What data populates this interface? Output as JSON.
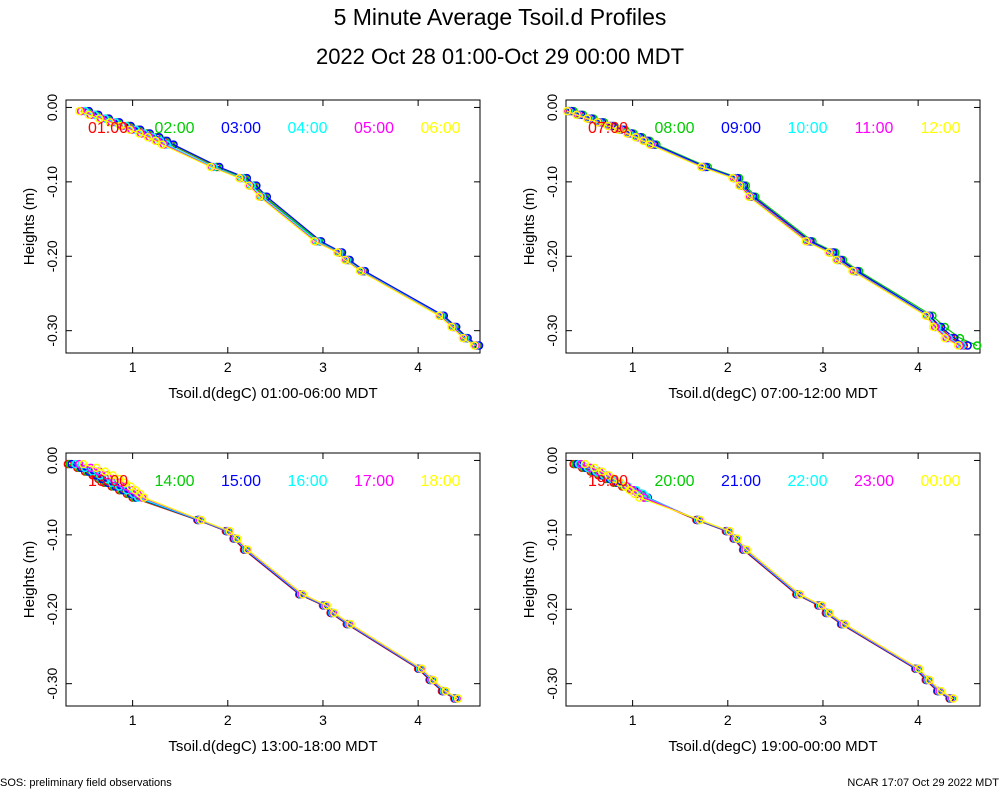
{
  "title": "5 Minute Average Tsoil.d Profiles",
  "subtitle": "2022 Oct 28 01:00-Oct 29 00:00 MDT",
  "footer_left": "SOS: preliminary field observations",
  "footer_right": "NCAR 17:07 Oct 29 2022 MDT",
  "series_colors": [
    "#ff0000",
    "#00cc00",
    "#0000ff",
    "#00ffff",
    "#ff00ff",
    "#ffff00"
  ],
  "chart_data": [
    {
      "type": "line",
      "xlabel": "Tsoil.d(degC) 01:00-06:00 MDT",
      "ylabel": "Heights (m)",
      "xlim": [
        0.3,
        4.65
      ],
      "ylim": [
        -0.33,
        0.01
      ],
      "x_ticks": [
        1,
        2,
        3,
        4
      ],
      "y_ticks": [
        0.0,
        -0.1,
        -0.2,
        -0.3
      ],
      "y_tick_labels": [
        "0.00",
        "-0.10",
        "-0.20",
        "-0.30"
      ],
      "heights": [
        -0.005,
        -0.01,
        -0.015,
        -0.02,
        -0.025,
        -0.03,
        -0.035,
        -0.04,
        -0.045,
        -0.05,
        -0.08,
        -0.095,
        -0.105,
        -0.12,
        -0.18,
        -0.195,
        -0.205,
        -0.22,
        -0.28,
        -0.295,
        -0.31,
        -0.32
      ],
      "series": [
        {
          "name": "01:00",
          "values": [
            0.5,
            0.6,
            0.72,
            0.83,
            0.95,
            1.05,
            1.15,
            1.25,
            1.33,
            1.4,
            1.88,
            2.17,
            2.27,
            2.38,
            2.95,
            3.18,
            3.26,
            3.42,
            4.25,
            4.38,
            4.5,
            4.62
          ]
        },
        {
          "name": "02:00",
          "values": [
            0.52,
            0.62,
            0.73,
            0.84,
            0.96,
            1.06,
            1.16,
            1.26,
            1.34,
            1.41,
            1.89,
            2.18,
            2.28,
            2.39,
            2.96,
            3.19,
            3.27,
            3.43,
            4.26,
            4.39,
            4.51,
            4.63
          ]
        },
        {
          "name": "03:00",
          "values": [
            0.54,
            0.64,
            0.75,
            0.86,
            0.98,
            1.08,
            1.18,
            1.28,
            1.36,
            1.43,
            1.91,
            2.2,
            2.3,
            2.41,
            2.98,
            3.2,
            3.28,
            3.44,
            4.27,
            4.4,
            4.52,
            4.64
          ]
        },
        {
          "name": "04:00",
          "values": [
            0.5,
            0.6,
            0.71,
            0.82,
            0.93,
            1.03,
            1.12,
            1.21,
            1.29,
            1.36,
            1.85,
            2.15,
            2.25,
            2.36,
            2.94,
            3.17,
            3.25,
            3.41,
            4.24,
            4.37,
            4.49,
            4.61
          ]
        },
        {
          "name": "05:00",
          "values": [
            0.46,
            0.56,
            0.67,
            0.78,
            0.89,
            0.99,
            1.09,
            1.18,
            1.26,
            1.33,
            1.83,
            2.13,
            2.23,
            2.34,
            2.92,
            3.16,
            3.24,
            3.4,
            4.23,
            4.36,
            4.48,
            4.6
          ]
        },
        {
          "name": "06:00",
          "values": [
            0.44,
            0.54,
            0.65,
            0.76,
            0.87,
            0.97,
            1.07,
            1.16,
            1.24,
            1.31,
            1.82,
            2.12,
            2.22,
            2.33,
            2.91,
            3.15,
            3.23,
            3.39,
            4.22,
            4.35,
            4.47,
            4.59
          ]
        }
      ]
    },
    {
      "type": "line",
      "xlabel": "Tsoil.d(degC) 07:00-12:00 MDT",
      "ylabel": "Heights (m)",
      "xlim": [
        0.3,
        4.65
      ],
      "ylim": [
        -0.33,
        0.01
      ],
      "x_ticks": [
        1,
        2,
        3,
        4
      ],
      "y_ticks": [
        0.0,
        -0.1,
        -0.2,
        -0.3
      ],
      "y_tick_labels": [
        "0.00",
        "-0.10",
        "-0.20",
        "-0.30"
      ],
      "heights": [
        -0.005,
        -0.01,
        -0.015,
        -0.02,
        -0.025,
        -0.03,
        -0.035,
        -0.04,
        -0.045,
        -0.05,
        -0.08,
        -0.095,
        -0.105,
        -0.12,
        -0.18,
        -0.195,
        -0.205,
        -0.22,
        -0.28,
        -0.295,
        -0.31,
        -0.32
      ],
      "series": [
        {
          "name": "07:00",
          "values": [
            0.34,
            0.44,
            0.55,
            0.66,
            0.77,
            0.88,
            0.97,
            1.06,
            1.14,
            1.21,
            1.75,
            2.08,
            2.15,
            2.25,
            2.85,
            3.1,
            3.18,
            3.35,
            4.12,
            4.22,
            4.35,
            4.48
          ]
        },
        {
          "name": "08:00",
          "values": [
            0.38,
            0.48,
            0.59,
            0.7,
            0.81,
            0.92,
            1.01,
            1.1,
            1.18,
            1.25,
            1.79,
            2.12,
            2.19,
            2.29,
            2.89,
            3.13,
            3.21,
            3.38,
            4.15,
            4.28,
            4.44,
            4.62
          ]
        },
        {
          "name": "09:00",
          "values": [
            0.36,
            0.46,
            0.57,
            0.68,
            0.79,
            0.9,
            0.99,
            1.08,
            1.16,
            1.23,
            1.77,
            2.1,
            2.17,
            2.27,
            2.87,
            3.11,
            3.19,
            3.36,
            4.12,
            4.24,
            4.38,
            4.52
          ]
        },
        {
          "name": "10:00",
          "values": [
            0.33,
            0.43,
            0.54,
            0.65,
            0.76,
            0.87,
            0.96,
            1.05,
            1.13,
            1.2,
            1.74,
            2.07,
            2.14,
            2.24,
            2.84,
            3.08,
            3.16,
            3.33,
            4.1,
            4.2,
            4.32,
            4.46
          ]
        },
        {
          "name": "11:00",
          "values": [
            0.32,
            0.42,
            0.53,
            0.64,
            0.75,
            0.86,
            0.95,
            1.04,
            1.12,
            1.19,
            1.73,
            2.06,
            2.13,
            2.23,
            2.83,
            3.07,
            3.15,
            3.32,
            4.09,
            4.18,
            4.3,
            4.44
          ]
        },
        {
          "name": "12:00",
          "values": [
            0.31,
            0.41,
            0.52,
            0.63,
            0.74,
            0.85,
            0.94,
            1.03,
            1.11,
            1.18,
            1.72,
            2.05,
            2.12,
            2.22,
            2.82,
            3.06,
            3.14,
            3.31,
            4.08,
            4.16,
            4.28,
            4.42
          ]
        }
      ]
    },
    {
      "type": "line",
      "xlabel": "Tsoil.d(degC) 13:00-18:00 MDT",
      "ylabel": "Heights (m)",
      "xlim": [
        0.3,
        4.65
      ],
      "ylim": [
        -0.33,
        0.01
      ],
      "x_ticks": [
        1,
        2,
        3,
        4
      ],
      "y_ticks": [
        0.0,
        -0.1,
        -0.2,
        -0.3
      ],
      "y_tick_labels": [
        "0.00",
        "-0.10",
        "-0.20",
        "-0.30"
      ],
      "heights": [
        -0.005,
        -0.01,
        -0.015,
        -0.02,
        -0.025,
        -0.03,
        -0.035,
        -0.04,
        -0.045,
        -0.05,
        -0.08,
        -0.095,
        -0.105,
        -0.12,
        -0.18,
        -0.195,
        -0.205,
        -0.22,
        -0.28,
        -0.295,
        -0.31,
        -0.32
      ],
      "series": [
        {
          "name": "13:00",
          "values": [
            0.32,
            0.42,
            0.5,
            0.58,
            0.64,
            0.7,
            0.78,
            0.86,
            0.94,
            1.0,
            1.68,
            1.98,
            2.06,
            2.17,
            2.75,
            3.0,
            3.08,
            3.25,
            4.0,
            4.12,
            4.25,
            4.38
          ]
        },
        {
          "name": "14:00",
          "values": [
            0.34,
            0.44,
            0.52,
            0.6,
            0.66,
            0.72,
            0.8,
            0.88,
            0.96,
            1.02,
            1.69,
            1.99,
            2.07,
            2.18,
            2.76,
            3.01,
            3.09,
            3.26,
            4.01,
            4.13,
            4.26,
            4.39
          ]
        },
        {
          "name": "15:00",
          "values": [
            0.36,
            0.46,
            0.54,
            0.62,
            0.68,
            0.74,
            0.82,
            0.9,
            0.98,
            1.04,
            1.69,
            1.99,
            2.07,
            2.18,
            2.76,
            3.01,
            3.09,
            3.26,
            4.01,
            4.13,
            4.26,
            4.39
          ]
        },
        {
          "name": "16:00",
          "values": [
            0.4,
            0.5,
            0.58,
            0.66,
            0.72,
            0.78,
            0.86,
            0.94,
            1.01,
            1.06,
            1.7,
            2.0,
            2.08,
            2.19,
            2.77,
            3.02,
            3.1,
            3.27,
            4.02,
            4.14,
            4.27,
            4.4
          ]
        },
        {
          "name": "17:00",
          "values": [
            0.44,
            0.56,
            0.65,
            0.73,
            0.8,
            0.86,
            0.93,
            0.99,
            1.05,
            1.1,
            1.71,
            2.01,
            2.09,
            2.2,
            2.78,
            3.03,
            3.11,
            3.28,
            4.03,
            4.15,
            4.28,
            4.41
          ]
        },
        {
          "name": "18:00",
          "values": [
            0.48,
            0.62,
            0.71,
            0.79,
            0.86,
            0.92,
            0.98,
            1.03,
            1.08,
            1.12,
            1.72,
            2.02,
            2.1,
            2.21,
            2.79,
            3.04,
            3.12,
            3.29,
            4.04,
            4.16,
            4.29,
            4.42
          ]
        }
      ]
    },
    {
      "type": "line",
      "xlabel": "Tsoil.d(degC) 19:00-00:00 MDT",
      "ylabel": "Heights (m)",
      "xlim": [
        0.3,
        4.65
      ],
      "ylim": [
        -0.33,
        0.01
      ],
      "x_ticks": [
        1,
        2,
        3,
        4
      ],
      "y_ticks": [
        0.0,
        -0.1,
        -0.2,
        -0.3
      ],
      "y_tick_labels": [
        "0.00",
        "-0.10",
        "-0.20",
        "-0.30"
      ],
      "heights": [
        -0.005,
        -0.01,
        -0.015,
        -0.02,
        -0.025,
        -0.03,
        -0.035,
        -0.04,
        -0.045,
        -0.05,
        -0.08,
        -0.095,
        -0.105,
        -0.12,
        -0.18,
        -0.195,
        -0.205,
        -0.22,
        -0.28,
        -0.295,
        -0.31,
        -0.32
      ],
      "series": [
        {
          "name": "19:00",
          "values": [
            0.38,
            0.47,
            0.56,
            0.64,
            0.72,
            0.8,
            0.89,
            0.98,
            1.06,
            1.12,
            1.67,
            1.98,
            2.06,
            2.16,
            2.72,
            2.95,
            3.03,
            3.19,
            3.97,
            4.08,
            4.2,
            4.33
          ]
        },
        {
          "name": "20:00",
          "values": [
            0.4,
            0.49,
            0.58,
            0.66,
            0.74,
            0.82,
            0.91,
            1.0,
            1.08,
            1.14,
            1.68,
            1.99,
            2.07,
            2.17,
            2.73,
            2.96,
            3.04,
            3.2,
            3.98,
            4.09,
            4.21,
            4.34
          ]
        },
        {
          "name": "21:00",
          "values": [
            0.42,
            0.51,
            0.6,
            0.68,
            0.76,
            0.84,
            0.93,
            1.02,
            1.1,
            1.16,
            1.68,
            1.99,
            2.07,
            2.17,
            2.73,
            2.96,
            3.04,
            3.2,
            3.98,
            4.09,
            4.21,
            4.34
          ]
        },
        {
          "name": "22:00",
          "values": [
            0.44,
            0.53,
            0.62,
            0.7,
            0.78,
            0.86,
            0.95,
            1.04,
            1.11,
            1.15,
            1.69,
            2.0,
            2.08,
            2.18,
            2.74,
            2.97,
            3.05,
            3.21,
            3.99,
            4.1,
            4.22,
            4.35
          ]
        },
        {
          "name": "23:00",
          "values": [
            0.46,
            0.56,
            0.65,
            0.73,
            0.8,
            0.87,
            0.94,
            1.0,
            1.06,
            1.12,
            1.7,
            2.01,
            2.09,
            2.19,
            2.75,
            2.98,
            3.06,
            3.22,
            4.0,
            4.11,
            4.23,
            4.36
          ]
        },
        {
          "name": "00:00",
          "values": [
            0.5,
            0.6,
            0.68,
            0.75,
            0.81,
            0.87,
            0.92,
            0.97,
            1.02,
            1.07,
            1.71,
            2.02,
            2.1,
            2.2,
            2.76,
            2.99,
            3.07,
            3.23,
            4.01,
            4.12,
            4.24,
            4.37
          ]
        }
      ]
    }
  ]
}
